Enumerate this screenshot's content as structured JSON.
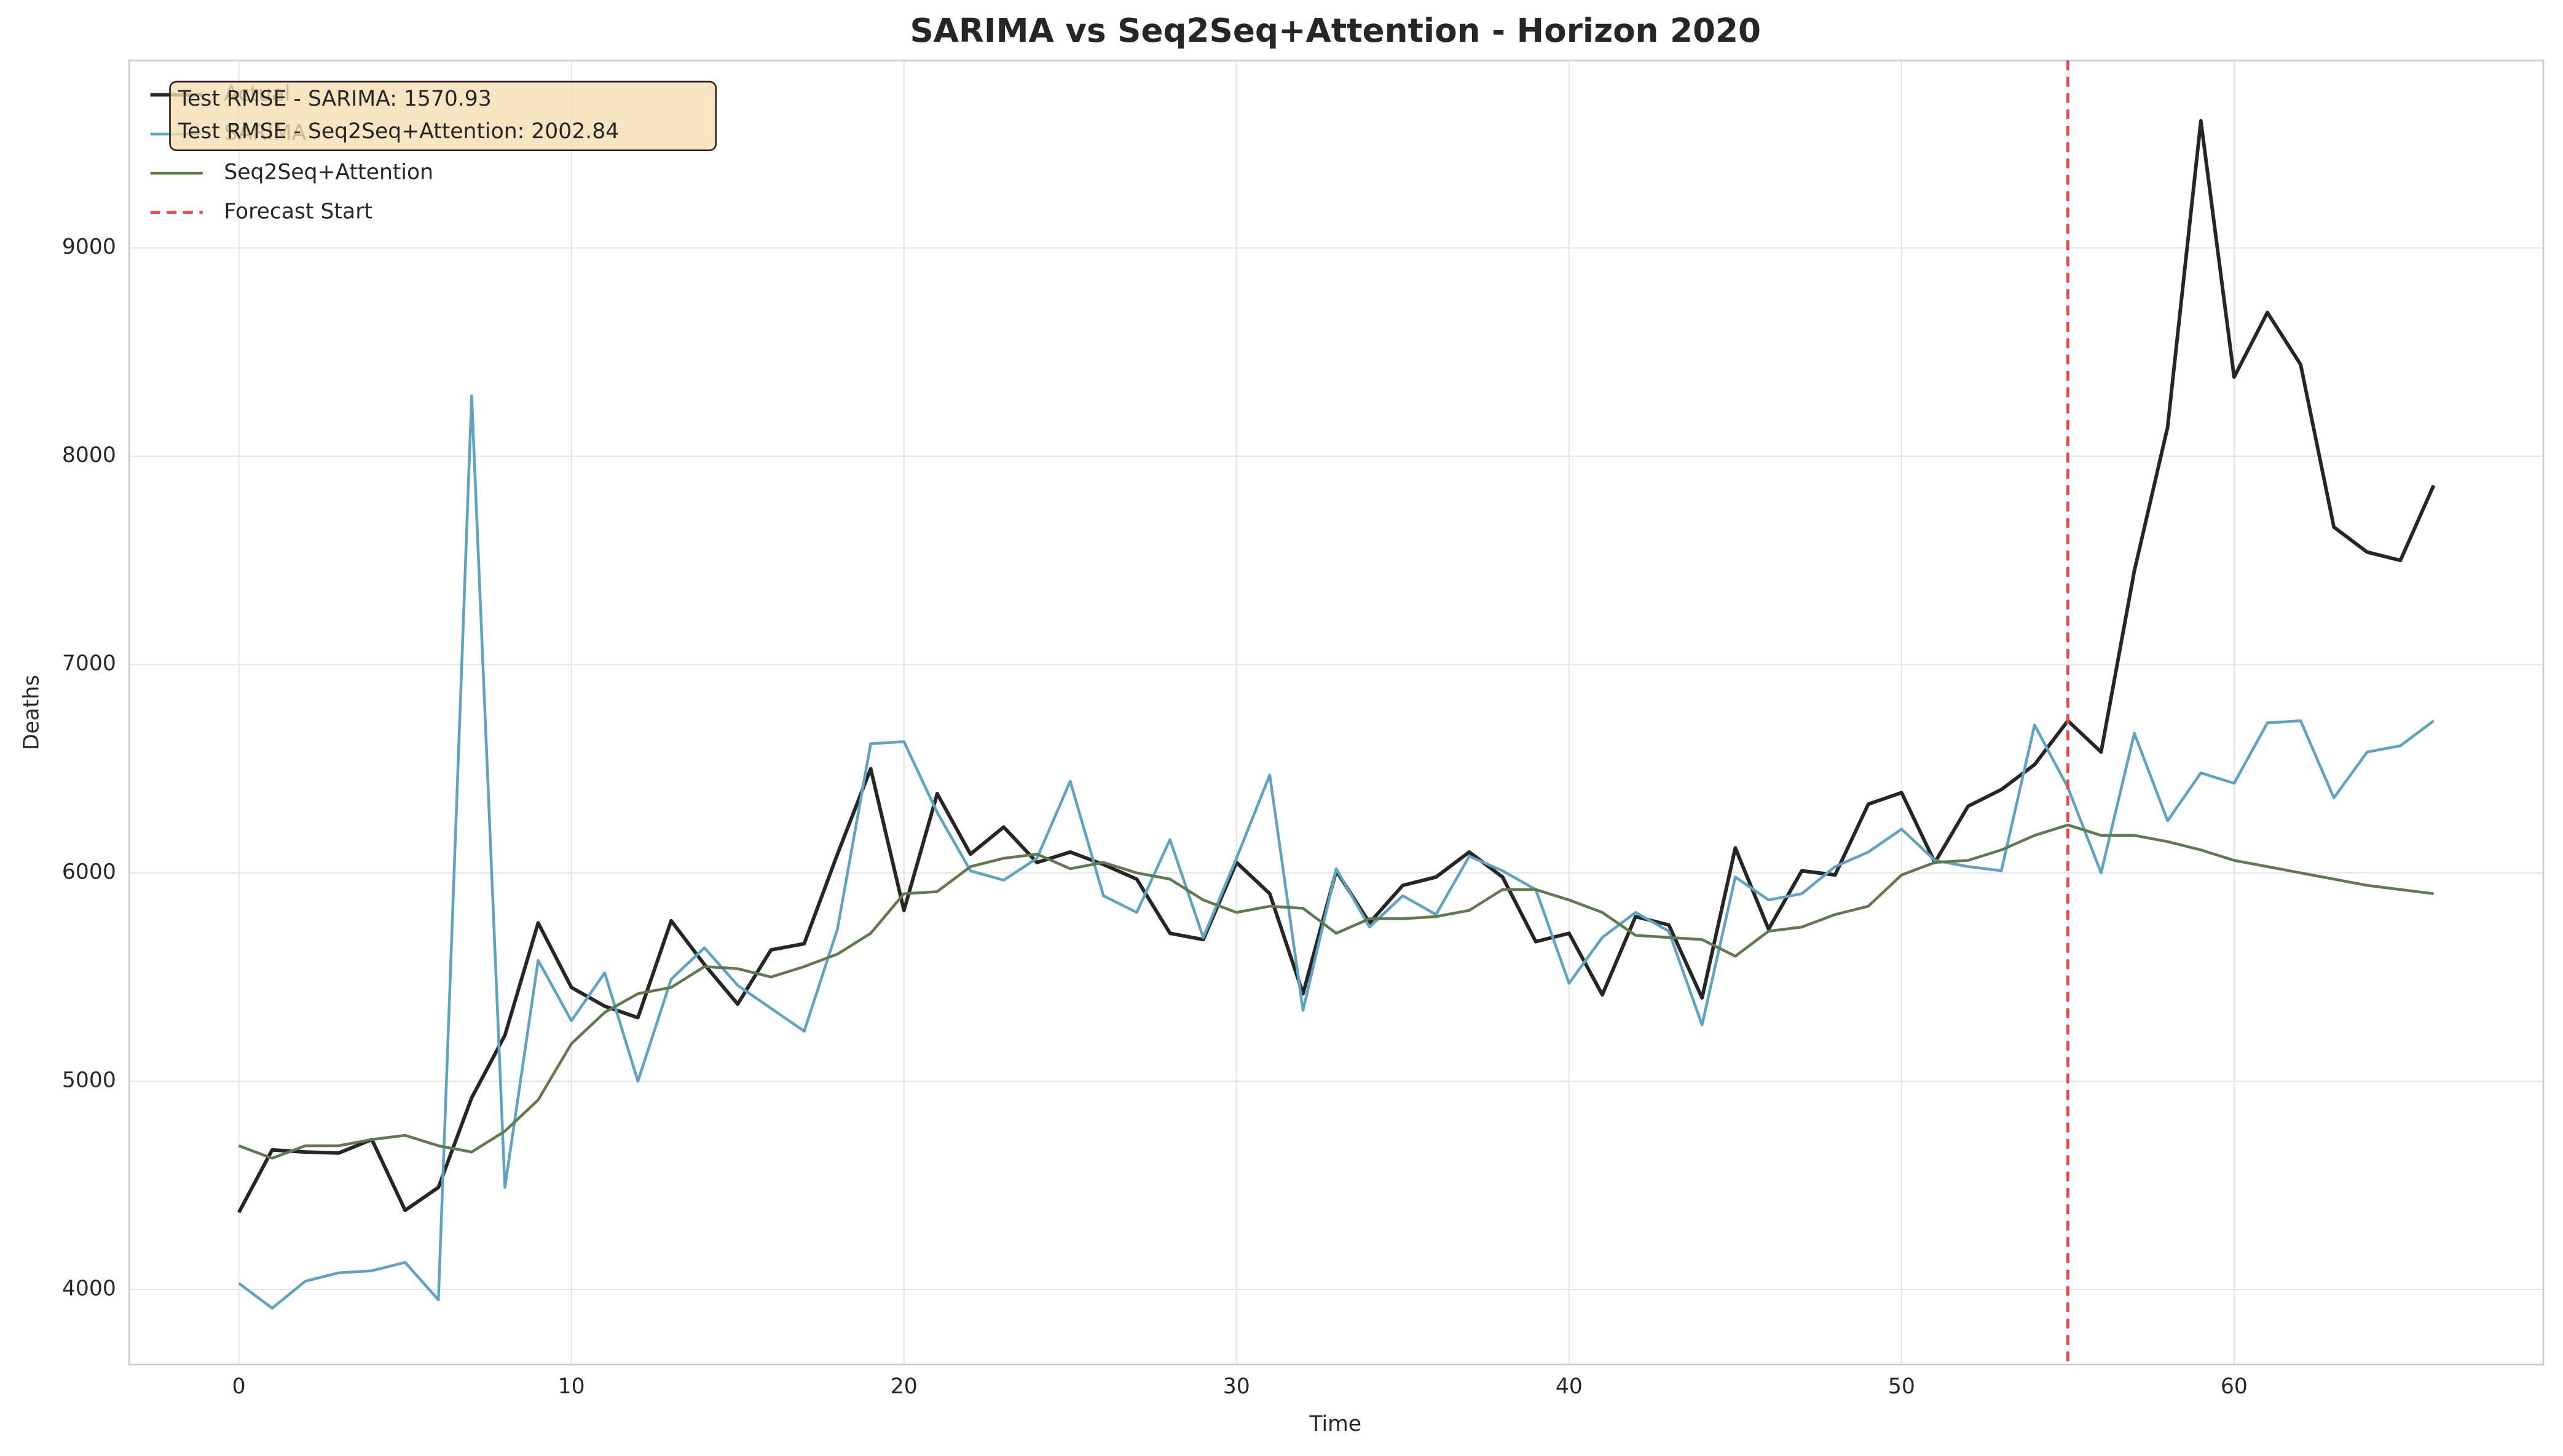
{
  "chart_data": {
    "type": "line",
    "title": "SARIMA vs Seq2Seq+Attention - Horizon 2020",
    "x_label": "Time",
    "y_label": "Deaths",
    "x": [
      0,
      1,
      2,
      3,
      4,
      5,
      6,
      7,
      8,
      9,
      10,
      11,
      12,
      13,
      14,
      15,
      16,
      17,
      18,
      19,
      20,
      21,
      22,
      23,
      24,
      25,
      26,
      27,
      28,
      29,
      30,
      31,
      32,
      33,
      34,
      35,
      36,
      37,
      38,
      39,
      40,
      41,
      42,
      43,
      44,
      45,
      46,
      47,
      48,
      49,
      50,
      51,
      52,
      53,
      54,
      55,
      56,
      57,
      58,
      59,
      60,
      61,
      62,
      63,
      64,
      65,
      66
    ],
    "series": [
      {
        "name": "Actual",
        "color": "#262626",
        "width": 2.2,
        "values": [
          4370,
          4670,
          4660,
          4655,
          4720,
          4380,
          4490,
          4920,
          5220,
          5760,
          5450,
          5360,
          5305,
          5770,
          5560,
          5370,
          5630,
          5660,
          6090,
          6500,
          5820,
          6380,
          6090,
          6220,
          6050,
          6100,
          6040,
          5970,
          5710,
          5680,
          6050,
          5900,
          5420,
          6010,
          5760,
          5940,
          5980,
          6100,
          5980,
          5670,
          5710,
          5415,
          5790,
          5750,
          5400,
          6120,
          5730,
          6010,
          5990,
          6330,
          6385,
          6050,
          6320,
          6400,
          6520,
          6730,
          6580,
          7450,
          8140,
          9610,
          8380,
          8690,
          8440,
          7660,
          7540,
          7500,
          7860
        ]
      },
      {
        "name": "SARIMA",
        "color": "#5fa3c0",
        "width": 1.7,
        "values": [
          4030,
          3910,
          4040,
          4080,
          4090,
          4130,
          3950,
          8290,
          4490,
          5580,
          5290,
          5520,
          5000,
          5490,
          5640,
          5460,
          5350,
          5240,
          5730,
          6620,
          6630,
          6290,
          6010,
          5965,
          6070,
          6440,
          5890,
          5810,
          6160,
          5690,
          6070,
          6470,
          5340,
          6020,
          5740,
          5890,
          5800,
          6080,
          6010,
          5920,
          5470,
          5690,
          5810,
          5720,
          5270,
          5980,
          5870,
          5900,
          6030,
          6100,
          6210,
          6060,
          6030,
          6010,
          6710,
          6410,
          6000,
          6670,
          6250,
          6480,
          6430,
          6720,
          6730,
          6360,
          6580,
          6610,
          6730
        ]
      },
      {
        "name": "Seq2Seq+Attention",
        "color": "#5e7a4e",
        "width": 1.7,
        "values": [
          4690,
          4630,
          4690,
          4690,
          4720,
          4740,
          4690,
          4660,
          4760,
          4910,
          5180,
          5330,
          5420,
          5450,
          5550,
          5540,
          5500,
          5550,
          5610,
          5710,
          5900,
          5910,
          6030,
          6070,
          6090,
          6020,
          6050,
          6000,
          5970,
          5870,
          5810,
          5840,
          5830,
          5710,
          5780,
          5780,
          5790,
          5820,
          5920,
          5920,
          5870,
          5810,
          5700,
          5690,
          5680,
          5600,
          5720,
          5740,
          5800,
          5840,
          5990,
          6050,
          6060,
          6110,
          6180,
          6230,
          6180,
          6180,
          6150,
          6110,
          6060,
          6030,
          6000,
          5970,
          5940,
          5920,
          5900
        ]
      }
    ],
    "forecast_start": {
      "name": "Forecast Start",
      "x": 55,
      "color": "#e84a4a"
    },
    "annotations": [
      "Test RMSE - SARIMA: 1570.93",
      "Test RMSE - Seq2Seq+Attention: 2002.84"
    ],
    "xlim": [
      -3.3,
      69.3
    ],
    "ylim": [
      3640,
      9900
    ],
    "xticks": [
      0,
      10,
      20,
      30,
      40,
      50,
      60
    ],
    "yticks": [
      4000,
      5000,
      6000,
      7000,
      8000,
      9000
    ],
    "grid": true,
    "legend": "upper left"
  }
}
